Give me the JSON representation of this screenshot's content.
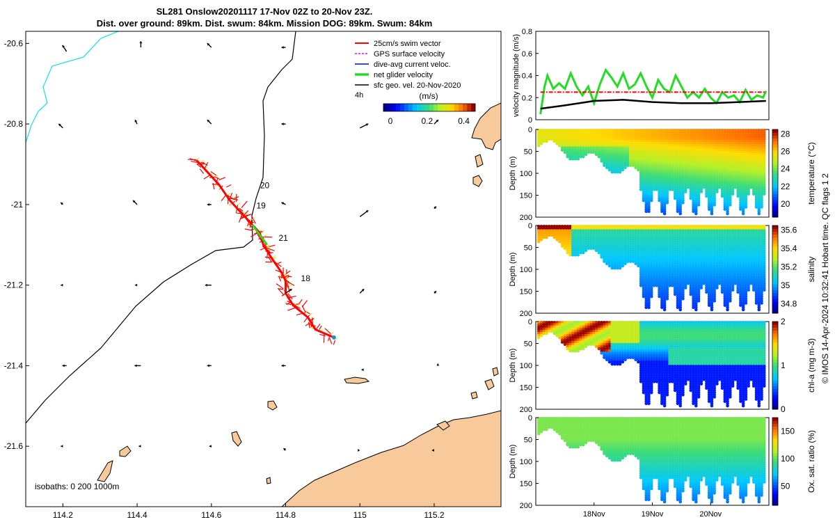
{
  "header": {
    "title_line1": "SL281 Onslow20201117 17-Nov 02Z to 20-Nov 23Z.",
    "title_line2": "Dist. over ground: 89km. Dist. swum: 84km. Mission DOG: 89km. Swum: 84km"
  },
  "footer_note": "© IMOS 14-Apr-2024 10:32:41 Hobart time. QC flags 1  2",
  "colors": {
    "land": "#f8c99a",
    "shelf_line": "#22e0ee",
    "track": "#ff0000",
    "swim": "#ff0000",
    "gps": "#ff00ff",
    "dac": "#0000ff",
    "net": "#22dd22",
    "geo": "#000000"
  },
  "chart_data": [
    {
      "type": "map",
      "xlim": [
        114.1,
        115.38
      ],
      "ylim": [
        -21.75,
        -20.57
      ],
      "x_ticks": [
        "114.2",
        "114.4",
        "114.6",
        "114.8",
        "115",
        "115.2"
      ],
      "y_ticks": [
        "-20.6",
        "-20.8",
        "-21",
        "-21.2",
        "-21.4",
        "-21.6"
      ],
      "legend": [
        "25cm/s swim vector",
        "GPS surface velocity",
        "dive-avg current veloc.",
        "net glider velocity",
        "sfc geo. vel. 20-Nov-2020"
      ],
      "legend_extra": "4h",
      "colorbar": {
        "label": "(m/s)",
        "ticks": [
          "0",
          "0.2",
          "0.4"
        ],
        "range": [
          0,
          0.5
        ]
      },
      "isobaths_label": "isobaths: 0   200  1000m",
      "day_labels": [
        {
          "text": "20",
          "lon": 114.72,
          "lat": -20.96
        },
        {
          "text": "19",
          "lon": 114.71,
          "lat": -21.01
        },
        {
          "text": "21",
          "lon": 114.77,
          "lat": -21.09
        },
        {
          "text": "18",
          "lon": 114.83,
          "lat": -21.19
        }
      ],
      "track": [
        [
          114.93,
          -21.33
        ],
        [
          114.88,
          -21.31
        ],
        [
          114.86,
          -21.28
        ],
        [
          114.82,
          -21.25
        ],
        [
          114.8,
          -21.22
        ],
        [
          114.8,
          -21.19
        ],
        [
          114.79,
          -21.17
        ],
        [
          114.76,
          -21.13
        ],
        [
          114.74,
          -21.1
        ],
        [
          114.73,
          -21.07
        ],
        [
          114.7,
          -21.04
        ],
        [
          114.68,
          -21.02
        ],
        [
          114.65,
          -20.99
        ],
        [
          114.62,
          -20.95
        ],
        [
          114.58,
          -20.91
        ],
        [
          114.56,
          -20.89
        ]
      ],
      "geo_arrows": [
        [
          114.21,
          -20.62,
          -0.02,
          0.03
        ],
        [
          114.41,
          -20.61,
          0.0,
          0.03
        ],
        [
          114.6,
          -20.61,
          -0.02,
          0.02
        ],
        [
          114.8,
          -20.61,
          -0.02,
          0.0
        ],
        [
          114.2,
          -20.81,
          -0.02,
          0.02
        ],
        [
          114.4,
          -20.8,
          -0.01,
          0.02
        ],
        [
          114.6,
          -20.8,
          -0.02,
          0.02
        ],
        [
          114.8,
          -20.8,
          -0.02,
          0.0
        ],
        [
          115.0,
          -20.81,
          0.04,
          0.02
        ],
        [
          115.2,
          -20.8,
          0.02,
          0.02
        ],
        [
          114.2,
          -21.0,
          -0.01,
          0.01
        ],
        [
          114.4,
          -21.0,
          -0.02,
          0.02
        ],
        [
          114.6,
          -21.0,
          -0.02,
          0.0
        ],
        [
          114.8,
          -21.0,
          -0.02,
          0.01
        ],
        [
          115.0,
          -21.03,
          0.04,
          0.03
        ],
        [
          115.2,
          -21.01,
          0.01,
          0.01
        ],
        [
          114.2,
          -21.2,
          -0.01,
          0.0
        ],
        [
          114.4,
          -21.2,
          -0.01,
          0.0
        ],
        [
          114.6,
          -21.2,
          -0.03,
          0.0
        ],
        [
          114.8,
          -21.22,
          0.03,
          0.02
        ],
        [
          115.0,
          -21.22,
          0.02,
          0.02
        ],
        [
          115.2,
          -21.22,
          0.01,
          0.01
        ],
        [
          114.21,
          -21.4,
          -0.02,
          0.0
        ],
        [
          114.41,
          -21.4,
          -0.03,
          0.0
        ],
        [
          114.6,
          -21.4,
          -0.02,
          0.0
        ],
        [
          114.8,
          -21.4,
          -0.02,
          0.0
        ],
        [
          115.01,
          -21.41,
          -0.01,
          0.0
        ],
        [
          115.21,
          -21.4,
          0.0,
          0.01
        ],
        [
          114.2,
          -21.6,
          -0.01,
          0.0
        ],
        [
          114.41,
          -21.6,
          -0.01,
          0.0
        ],
        [
          114.6,
          -21.6,
          -0.01,
          0.0
        ],
        [
          114.8,
          -21.61,
          -0.01,
          0.01
        ],
        [
          115.0,
          -21.61,
          0.0,
          0.0
        ],
        [
          115.2,
          -21.61,
          -0.01,
          0.0
        ]
      ]
    },
    {
      "type": "line",
      "ylabel": "velocity magnitude (m/s)",
      "ylim": [
        0,
        0.8
      ],
      "y_ticks": [
        "0",
        "0.2",
        "0.4",
        "0.6",
        "0.8"
      ],
      "xlim": [
        17.0,
        21.0
      ],
      "series": [
        {
          "color": "#22dd22",
          "x": [
            17.08,
            17.15,
            17.2,
            17.3,
            17.4,
            17.5,
            17.6,
            17.7,
            17.8,
            17.9,
            18.0,
            18.1,
            18.2,
            18.3,
            18.4,
            18.5,
            18.6,
            18.7,
            18.8,
            18.9,
            19.0,
            19.1,
            19.2,
            19.3,
            19.4,
            19.5,
            19.6,
            19.7,
            19.8,
            19.9,
            20.0,
            20.1,
            20.2,
            20.3,
            20.4,
            20.5,
            20.6,
            20.7,
            20.8,
            20.9,
            20.95
          ],
          "y": [
            0.05,
            0.3,
            0.4,
            0.28,
            0.33,
            0.28,
            0.42,
            0.3,
            0.22,
            0.3,
            0.15,
            0.32,
            0.45,
            0.38,
            0.3,
            0.42,
            0.28,
            0.32,
            0.42,
            0.3,
            0.2,
            0.36,
            0.28,
            0.25,
            0.4,
            0.3,
            0.2,
            0.25,
            0.2,
            0.28,
            0.2,
            0.15,
            0.25,
            0.2,
            0.22,
            0.16,
            0.27,
            0.18,
            0.22,
            0.2,
            0.26
          ]
        },
        {
          "color": "#ff0000",
          "x": [
            17.08,
            20.95
          ],
          "y": [
            0.25,
            0.25
          ]
        },
        {
          "color": "#000000",
          "x": [
            17.08,
            17.5,
            18.0,
            18.5,
            19.0,
            19.5,
            20.0,
            20.5,
            20.95
          ],
          "y": [
            0.1,
            0.13,
            0.17,
            0.18,
            0.16,
            0.15,
            0.15,
            0.16,
            0.17
          ]
        }
      ]
    },
    {
      "type": "scatter",
      "ylabel": "Depth (m)",
      "clabel": "temperature (°C)",
      "ylim": [
        0,
        200
      ],
      "y_ticks": [
        "0",
        "50",
        "100",
        "150",
        "200"
      ],
      "c_ticks": [
        "20",
        "22",
        "24",
        "26",
        "28"
      ],
      "crange": [
        18.5,
        28.5
      ]
    },
    {
      "type": "scatter",
      "ylabel": "Depth (m)",
      "clabel": "salinity",
      "ylim": [
        0,
        200
      ],
      "y_ticks": [
        "0",
        "50",
        "100",
        "150",
        "200"
      ],
      "c_ticks": [
        "34.8",
        "35",
        "35.2",
        "35.4",
        "35.6"
      ],
      "crange": [
        34.7,
        35.65
      ]
    },
    {
      "type": "scatter",
      "ylabel": "Depth (m)",
      "clabel": "chl-a (mg m-3)",
      "ylim": [
        0,
        200
      ],
      "y_ticks": [
        "0",
        "50",
        "100",
        "150",
        "200"
      ],
      "c_ticks": [
        "0",
        "1",
        "2"
      ],
      "crange": [
        0,
        2
      ]
    },
    {
      "type": "scatter",
      "ylabel": "Depth (m)",
      "clabel": "Ox. sat. ratio (%)",
      "ylim": [
        0,
        200
      ],
      "y_ticks": [
        "0",
        "50",
        "100",
        "150",
        "200"
      ],
      "c_ticks": [
        "50",
        "100",
        "150"
      ],
      "crange": [
        15,
        175
      ],
      "x_ticks": [
        "18Nov",
        "19Nov",
        "20Nov"
      ]
    }
  ]
}
